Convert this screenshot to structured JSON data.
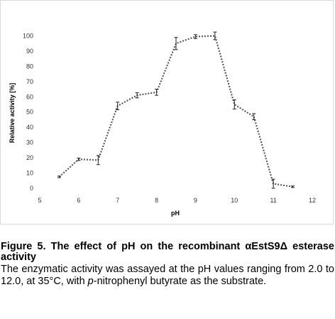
{
  "chart_data": {
    "type": "line",
    "xlabel": "pH",
    "ylabel": "Relative activity [%]",
    "xlim": [
      5,
      12
    ],
    "ylim": [
      0,
      110
    ],
    "xticks": [
      5,
      6,
      7,
      8,
      9,
      10,
      11,
      12
    ],
    "yticks": [
      0,
      10,
      20,
      30,
      40,
      50,
      60,
      70,
      80,
      90,
      100
    ],
    "grid": false,
    "line_style": "dotted",
    "line_color": "#595959",
    "series": [
      {
        "x": [
          5.5,
          6,
          6.5,
          7,
          7.5,
          8,
          8.5,
          9,
          9.5,
          10,
          10.5,
          11,
          11.5
        ],
        "y": [
          7.5,
          19,
          18.5,
          54,
          61,
          63,
          95,
          99.5,
          100,
          55,
          47,
          3,
          1
        ],
        "error": [
          0.5,
          0.8,
          3,
          2.5,
          1.7,
          2,
          4,
          1.3,
          2.5,
          3,
          2,
          3,
          0.5
        ]
      }
    ]
  },
  "caption": {
    "title": "Figure 5. The effect of pH on the recombinant αEstS9Δ esterase activity",
    "body_before": "The enzymatic activity was assayed at the pH values ranging from 2.0 to 12.0, at 35°C, with ",
    "body_italic": "p",
    "body_after": "-nitrophenyl butyrate as the substrate."
  }
}
